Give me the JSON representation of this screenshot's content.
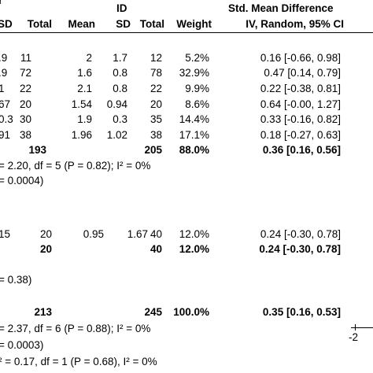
{
  "header": {
    "group2": "ID",
    "effect_title": "Std. Mean Difference",
    "group1_fragment": "r",
    "columns": {
      "sd1": "SD",
      "total1": "Total",
      "mean2": "Mean",
      "sd2": "SD",
      "total2": "Total",
      "weight": "Weight",
      "method": "IV, Random, 95% CI"
    }
  },
  "studies": [
    {
      "sd1": ".9",
      "total1": "11",
      "mean2": "2",
      "sd2": "1.7",
      "total2": "12",
      "weight": "5.2%",
      "ci": "0.16 [-0.66, 0.98]"
    },
    {
      "sd1": ".9",
      "total1": "72",
      "mean2": "1.6",
      "sd2": "0.8",
      "total2": "78",
      "weight": "32.9%",
      "ci": "0.47 [0.14, 0.79]"
    },
    {
      "sd1": "1",
      "total1": "22",
      "mean2": "2.1",
      "sd2": "0.8",
      "total2": "22",
      "weight": "9.9%",
      "ci": "0.22 [-0.38, 0.81]"
    },
    {
      "sd1": "67",
      "total1": "20",
      "mean2": "1.54",
      "sd2": "0.94",
      "total2": "20",
      "weight": "8.6%",
      "ci": "0.64 [-0.00, 1.27]"
    },
    {
      "sd1": "0.3",
      "total1": "30",
      "mean2": "1.9",
      "sd2": "0.3",
      "total2": "35",
      "weight": "14.4%",
      "ci": "0.33 [-0.16, 0.82]"
    },
    {
      "sd1": "91",
      "total1": "38",
      "mean2": "1.96",
      "sd2": "1.02",
      "total2": "38",
      "weight": "17.1%",
      "ci": "0.18 [-0.27, 0.63]"
    }
  ],
  "subtotal1": {
    "total1": "193",
    "total2": "205",
    "weight": "88.0%",
    "ci": "0.36 [0.16, 0.56]"
  },
  "het1": "= 2.20, df = 5 (P = 0.82); I² = 0%",
  "overall1": "= 0.0004)",
  "study7": {
    "sd1": "15",
    "total1": "20",
    "mean2": "0.95",
    "sd2": "1.67",
    "total2": "40",
    "weight": "12.0%",
    "ci": "0.24 [-0.30, 0.78]"
  },
  "subtotal2": {
    "total1": "20",
    "total2": "40",
    "weight": "12.0%",
    "ci": "0.24 [-0.30, 0.78]"
  },
  "overall2": "= 0.38)",
  "total": {
    "total1": "213",
    "total2": "245",
    "weight": "100.0%",
    "ci": "0.35 [0.16, 0.53]"
  },
  "het_total": "= 2.37, df = 6 (P = 0.88); I² = 0%",
  "overall_total": "= 0.0003)",
  "subgroup_diff": "² = 0.17, df = 1 (P = 0.68), I² = 0%",
  "axis_tick": "-2"
}
